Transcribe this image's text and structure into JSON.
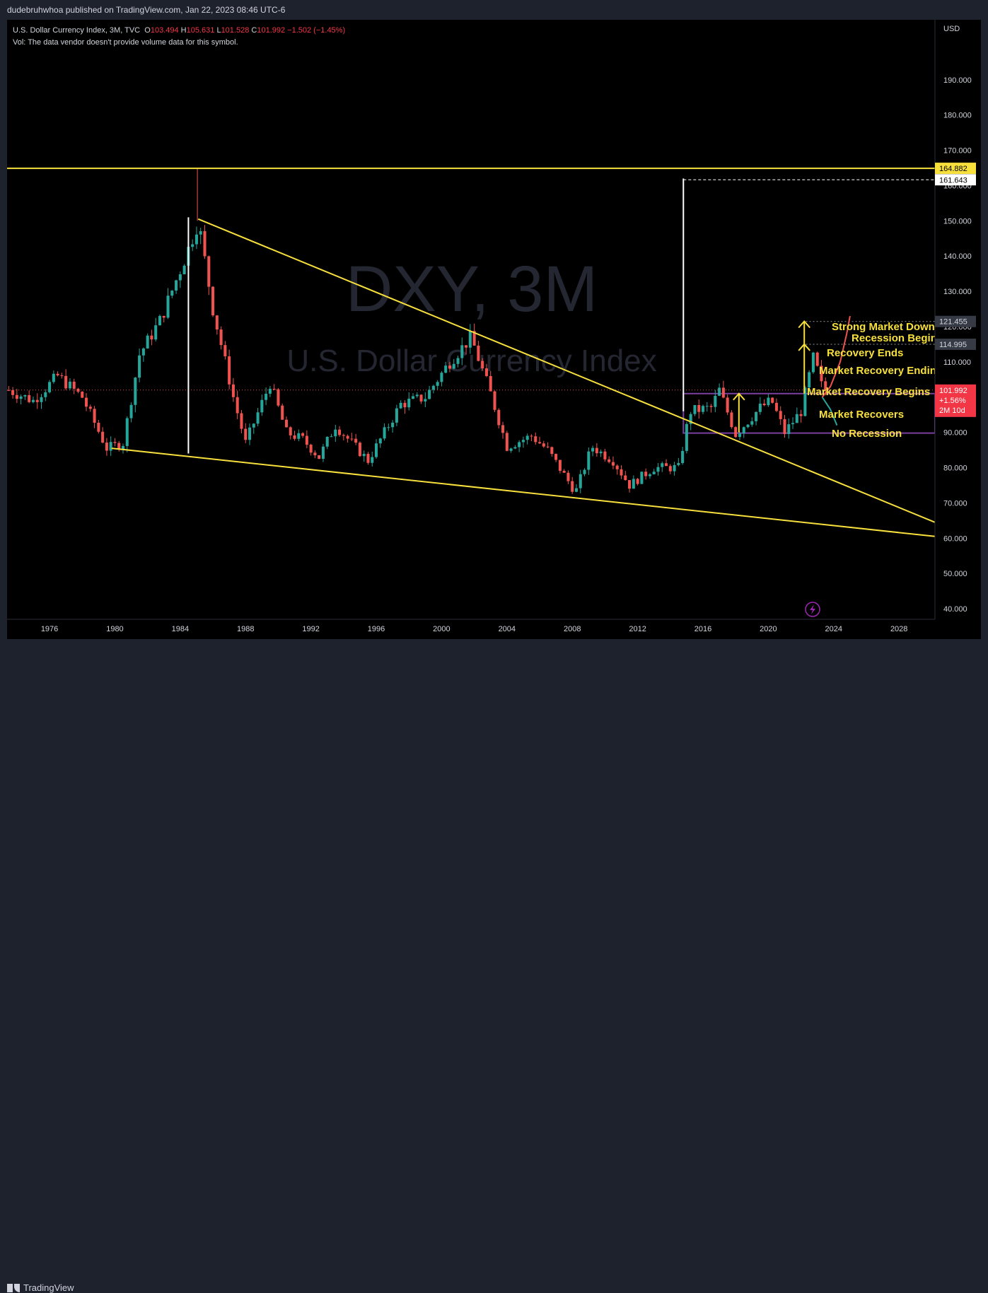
{
  "publisher": "dudebruhwhoa published on TradingView.com, Jan 22, 2023 08:46 UTC-6",
  "legend": {
    "symbol": "U.S. Dollar Currency Index, 3M, TVC",
    "o_label": "O",
    "o": "103.494",
    "h_label": "H",
    "h": "105.631",
    "l_label": "L",
    "l": "101.528",
    "c_label": "C",
    "c": "101.992",
    "change": "−1.502 (−1.45%)",
    "volume": "Vol: The data vendor doesn't provide volume data for this symbol."
  },
  "watermark": {
    "ticker": "DXY, 3M",
    "name": "U.S. Dollar Currency Index"
  },
  "currency": "USD",
  "brand": "TradingView",
  "colors": {
    "up": "#26a69a",
    "down": "#ef5350",
    "trendline": "#f7e03c",
    "badge_yellow": "#f7e03c",
    "badge_red": "#f23645",
    "purple": "#7b3fa0",
    "text": "#d1d4dc"
  },
  "price_badges": [
    {
      "value": "164.882",
      "style": "yellow"
    },
    {
      "value": "161.643",
      "style": "white"
    },
    {
      "value": "121.455",
      "style": "gray"
    },
    {
      "value": "114.995",
      "style": "gray"
    },
    {
      "value": "101.992",
      "style": "red",
      "extra": [
        "+1.56%",
        "2M 10d"
      ]
    }
  ],
  "annotations": [
    "Strong Market Down",
    "Recession Begins",
    "Recovery Ends",
    "Market Recovery Ending",
    "Market Recovery Begins",
    "Market Recovers",
    "No Recession"
  ],
  "chart_data": {
    "type": "candlestick",
    "title": "U.S. Dollar Currency Index, 3M, TVC",
    "x_range": [
      1973.4,
      2030.2
    ],
    "ylim": [
      37,
      207
    ],
    "y_ticks": [
      40,
      50,
      60,
      70,
      80,
      90,
      100,
      110,
      120,
      130,
      140,
      150,
      160,
      170,
      180,
      190
    ],
    "y_tick_labels": [
      "40.000",
      "50.000",
      "60.000",
      "70.000",
      "80.000",
      "90.000",
      "100.000",
      "110.000",
      "120.000",
      "130.000",
      "140.000",
      "150.000",
      "160.000",
      "170.000",
      "180.000",
      "190.000"
    ],
    "x_ticks": [
      1976,
      1980,
      1984,
      1988,
      1992,
      1996,
      2000,
      2004,
      2008,
      2012,
      2016,
      2020,
      2024,
      2028
    ],
    "key_points": [
      {
        "x": 1973.5,
        "y": 102
      },
      {
        "x": 1975.0,
        "y": 99
      },
      {
        "x": 1976.5,
        "y": 106
      },
      {
        "x": 1978.0,
        "y": 100
      },
      {
        "x": 1979.5,
        "y": 85.5
      },
      {
        "x": 1980.5,
        "y": 87
      },
      {
        "x": 1981.5,
        "y": 112
      },
      {
        "x": 1982.8,
        "y": 122
      },
      {
        "x": 1984.5,
        "y": 142
      },
      {
        "x": 1985.1,
        "y": 150
      },
      {
        "x": 1986.0,
        "y": 125
      },
      {
        "x": 1987.3,
        "y": 99
      },
      {
        "x": 1988.0,
        "y": 87
      },
      {
        "x": 1989.5,
        "y": 104
      },
      {
        "x": 1990.5,
        "y": 90
      },
      {
        "x": 1991.5,
        "y": 88
      },
      {
        "x": 1992.5,
        "y": 83
      },
      {
        "x": 1993.5,
        "y": 92
      },
      {
        "x": 1995.5,
        "y": 82
      },
      {
        "x": 1997.5,
        "y": 98
      },
      {
        "x": 1999.0,
        "y": 100
      },
      {
        "x": 2000.5,
        "y": 110
      },
      {
        "x": 2001.8,
        "y": 117
      },
      {
        "x": 2003.0,
        "y": 101
      },
      {
        "x": 2004.0,
        "y": 86
      },
      {
        "x": 2005.5,
        "y": 89
      },
      {
        "x": 2006.5,
        "y": 85
      },
      {
        "x": 2008.2,
        "y": 73
      },
      {
        "x": 2009.2,
        "y": 86
      },
      {
        "x": 2010.5,
        "y": 82
      },
      {
        "x": 2011.5,
        "y": 75
      },
      {
        "x": 2013.0,
        "y": 80
      },
      {
        "x": 2014.5,
        "y": 80
      },
      {
        "x": 2015.2,
        "y": 96
      },
      {
        "x": 2016.5,
        "y": 97
      },
      {
        "x": 2017.0,
        "y": 102
      },
      {
        "x": 2018.0,
        "y": 89.5
      },
      {
        "x": 2019.5,
        "y": 97
      },
      {
        "x": 2020.2,
        "y": 99
      },
      {
        "x": 2021.0,
        "y": 90
      },
      {
        "x": 2022.0,
        "y": 96
      },
      {
        "x": 2022.8,
        "y": 112
      },
      {
        "x": 2023.2,
        "y": 103.5
      },
      {
        "x": 2023.5,
        "y": 101.99
      }
    ],
    "projections": [
      {
        "name": "green",
        "color": "#26a69a",
        "points": [
          [
            2023.3,
            100
          ],
          [
            2023.8,
            96.5
          ],
          [
            2024.2,
            92
          ]
        ]
      },
      {
        "name": "red",
        "color": "#ef5350",
        "points": [
          [
            2023.3,
            100
          ],
          [
            2023.8,
            103
          ],
          [
            2024.4,
            110
          ],
          [
            2024.8,
            118
          ],
          [
            2025.0,
            123
          ]
        ]
      }
    ],
    "trendlines": [
      {
        "from": [
          1973.4,
          164.882
        ],
        "to": [
          2030.2,
          164.882
        ]
      },
      {
        "from": [
          1985.1,
          150.5
        ],
        "to": [
          2030.2,
          64.5
        ]
      },
      {
        "from": [
          1979.8,
          85.5
        ],
        "to": [
          2030.2,
          60.5
        ]
      }
    ],
    "vertical_lines": [
      {
        "x": 1984.5,
        "from": 84,
        "to": 151
      },
      {
        "x": 2014.8,
        "from": 96,
        "to": 162
      }
    ],
    "horizontal_levels": [
      {
        "y": 161.643,
        "style": "dashed",
        "from": 2014.8
      },
      {
        "y": 121.455,
        "style": "dotted",
        "from": 2022.3
      },
      {
        "y": 114.995,
        "style": "dotted",
        "from": 2022.3
      },
      {
        "y": 101.992,
        "style": "dotted-red",
        "from": 1973.4
      }
    ],
    "range_boxes": [
      {
        "x0": 2014.8,
        "x1": 2030.2,
        "y0": 89.8,
        "y1": 101.0,
        "color": "#7b3fa0"
      }
    ],
    "arrows": [
      {
        "x": 2018.2,
        "from": 90,
        "to": 101
      },
      {
        "x": 2022.2,
        "from": 101,
        "to": 115
      },
      {
        "x": 2022.2,
        "from": 115,
        "to": 121.5
      }
    ]
  }
}
